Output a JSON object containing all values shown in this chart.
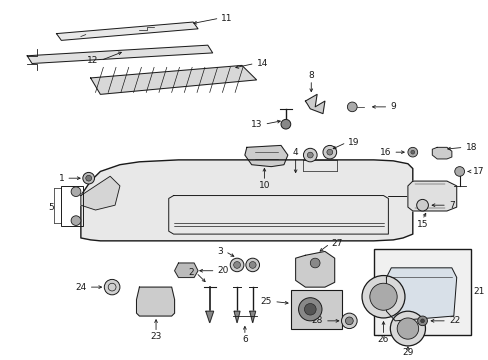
{
  "bg": "#ffffff",
  "fw": 4.89,
  "fh": 3.6,
  "dpi": 100,
  "lc": "#1a1a1a",
  "lw": 0.7,
  "fs": 6.5
}
